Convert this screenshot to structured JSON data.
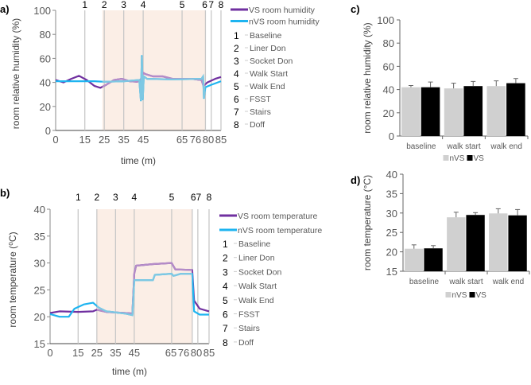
{
  "chart_data": [
    {
      "panel": "a)",
      "type": "line",
      "xlabel": "time (m)",
      "ylabel": "room relative humidity (%)",
      "ylim": [
        0,
        100
      ],
      "yticks": [
        "0",
        "20",
        "40",
        "60",
        "80",
        "100"
      ],
      "xlim": [
        0,
        85
      ],
      "xticks": [
        "0",
        "15",
        "25",
        "35",
        "45",
        "65",
        "76",
        "80",
        "85"
      ],
      "shaded_range": [
        24,
        77
      ],
      "events": [
        {
          "num": "1",
          "t": 15,
          "label": "Baseline"
        },
        {
          "num": "2",
          "t": 25,
          "label": "Liner Don"
        },
        {
          "num": "3",
          "t": 35,
          "label": "Socket Don"
        },
        {
          "num": "4",
          "t": 45,
          "label": "Walk Start"
        },
        {
          "num": "5",
          "t": 65,
          "label": "Walk End"
        },
        {
          "num": "6",
          "t": 77,
          "label": "FSST"
        },
        {
          "num": "7",
          "t": 80,
          "label": "Stairs"
        },
        {
          "num": "8",
          "t": 85,
          "label": "Doff"
        }
      ],
      "series": [
        {
          "name": "VS room humidity",
          "color": "#7030a0",
          "shade_color": "#b48cc8",
          "x": [
            0,
            4,
            8,
            12,
            16,
            20,
            23,
            26,
            30,
            34,
            38,
            42,
            44,
            45,
            46,
            50,
            55,
            60,
            65,
            70,
            75,
            76,
            78,
            82,
            85
          ],
          "y": [
            42,
            40,
            43,
            45.5,
            42,
            37,
            35.5,
            38,
            42,
            43,
            41,
            40.5,
            43,
            48,
            47,
            45,
            45,
            43,
            43,
            43,
            42,
            37,
            40,
            43,
            44.5
          ]
        },
        {
          "name": "nVS room humidity",
          "color": "#1eb4f0",
          "shade_color": "#7ec8e3",
          "x": [
            0,
            10,
            20,
            25,
            35,
            43,
            43.8,
            44.3,
            44.8,
            45.3,
            47,
            60,
            75,
            75.8,
            76.2,
            77,
            80,
            85
          ],
          "y": [
            41,
            41,
            41,
            40.5,
            41,
            42,
            25,
            62,
            26,
            45,
            43,
            42.5,
            43,
            45,
            27,
            36,
            38,
            41
          ]
        }
      ]
    },
    {
      "panel": "b)",
      "type": "line",
      "xlabel": "time (m)",
      "ylabel": "room temperature (⁰C)",
      "ylim": [
        15,
        40
      ],
      "yticks": [
        "15",
        "20",
        "25",
        "30",
        "35",
        "40"
      ],
      "xlim": [
        0,
        85
      ],
      "xticks": [
        "0",
        "15",
        "25",
        "35",
        "45",
        "65",
        "76",
        "80",
        "85"
      ],
      "shaded_range": [
        25,
        76
      ],
      "events": [
        {
          "num": "1",
          "t": 15,
          "label": "Baseline"
        },
        {
          "num": "2",
          "t": 25,
          "label": "Liner Don"
        },
        {
          "num": "3",
          "t": 35,
          "label": "Socket Don"
        },
        {
          "num": "4",
          "t": 45,
          "label": "Walk Start"
        },
        {
          "num": "5",
          "t": 65,
          "label": "Walk End"
        },
        {
          "num": "6",
          "t": 76,
          "label": "FSST"
        },
        {
          "num": "7",
          "t": 79,
          "label": "Stairs"
        },
        {
          "num": "8",
          "t": 85,
          "label": "Doff"
        }
      ],
      "event_header": [
        "1",
        "2",
        "3",
        "4",
        "5",
        "67",
        "8"
      ],
      "series": [
        {
          "name": "VS room temperature",
          "color": "#7030a0",
          "shade_color": "#b48cc8",
          "x": [
            0,
            5,
            15,
            23,
            25,
            30,
            40,
            44,
            45,
            46,
            55,
            65,
            67,
            76,
            77,
            80,
            85
          ],
          "y": [
            20.7,
            21,
            20.9,
            21,
            21.3,
            20.9,
            20.7,
            20.6,
            28,
            29.5,
            29.8,
            30,
            28.8,
            28.7,
            23,
            21.5,
            21
          ]
        },
        {
          "name": "nVS room temperature",
          "color": "#1eb4f0",
          "shade_color": "#7ec8e3",
          "x": [
            0,
            5,
            10,
            13,
            18,
            23,
            26,
            30,
            40,
            44,
            45,
            55,
            56,
            65,
            66,
            70,
            76,
            77,
            80,
            85
          ],
          "y": [
            20.5,
            20,
            20,
            21.5,
            22.3,
            22.6,
            21.7,
            21,
            20.6,
            20.3,
            26.8,
            26.8,
            27.8,
            28,
            27.6,
            28,
            28,
            21,
            20.4,
            20.4
          ]
        }
      ]
    },
    {
      "panel": "c)",
      "type": "bar",
      "ylabel": "room relative humidity (%)",
      "ylim": [
        0,
        100
      ],
      "yticks": [
        "0",
        "20",
        "40",
        "60",
        "80",
        "100"
      ],
      "categories": [
        "baseline",
        "walk start",
        "walk end"
      ],
      "series": [
        {
          "name": "nVS",
          "color": "#d0d0d0",
          "values": [
            42,
            41,
            43
          ],
          "errors": [
            1.5,
            4.5,
            4.5
          ]
        },
        {
          "name": "VS",
          "color": "#000000",
          "values": [
            42,
            43,
            45.5
          ],
          "errors": [
            4.5,
            4,
            4
          ]
        }
      ],
      "legend": "bottom"
    },
    {
      "panel": "d)",
      "type": "bar",
      "ylabel": "room temperature (°C)",
      "ylim": [
        15,
        40
      ],
      "yticks": [
        "15",
        "20",
        "25",
        "30",
        "35",
        "40"
      ],
      "categories": [
        "baseline",
        "walk start",
        "walk end"
      ],
      "series": [
        {
          "name": "nVS",
          "color": "#d0d0d0",
          "values": [
            20.8,
            28.9,
            29.9
          ],
          "errors": [
            1,
            1.3,
            1.2
          ]
        },
        {
          "name": "VS",
          "color": "#000000",
          "values": [
            20.9,
            29.5,
            29.4
          ],
          "errors": [
            0.7,
            0.6,
            1.5
          ]
        }
      ],
      "legend": "bottom"
    }
  ]
}
